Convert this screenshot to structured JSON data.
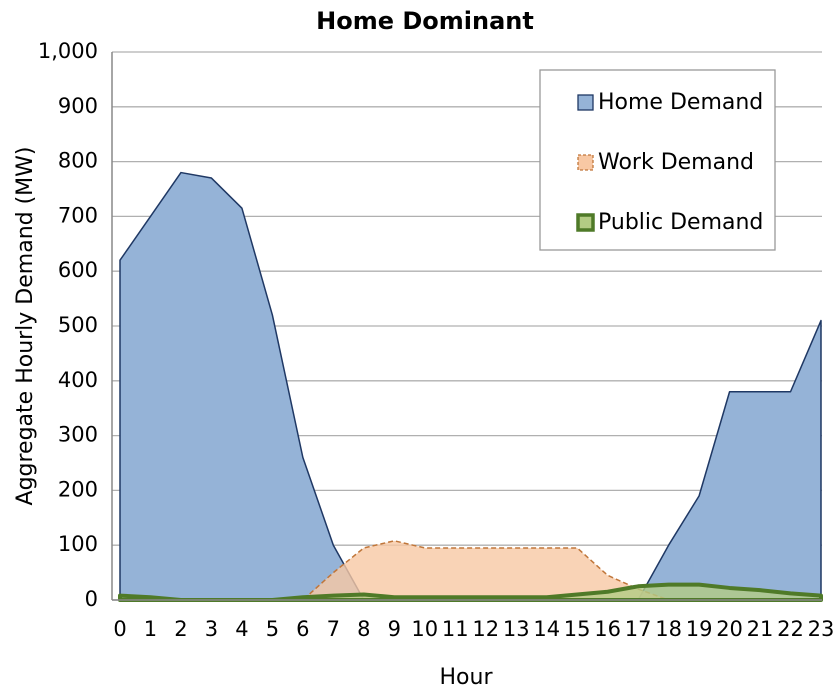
{
  "chart_data": {
    "type": "area",
    "title": "Home Dominant",
    "x_label": "Hour",
    "y_label": "Aggregate Hourly Demand (MW)",
    "categories": [
      "0",
      "1",
      "2",
      "3",
      "4",
      "5",
      "6",
      "7",
      "8",
      "9",
      "10",
      "11",
      "12",
      "13",
      "14",
      "15",
      "16",
      "17",
      "18",
      "19",
      "20",
      "21",
      "22",
      "23"
    ],
    "series": [
      {
        "name": "Home Demand",
        "color": "#95b3d7",
        "line_color": "#1f3864",
        "values": [
          620,
          700,
          780,
          770,
          715,
          520,
          260,
          100,
          0,
          0,
          0,
          0,
          0,
          0,
          0,
          0,
          0,
          0,
          100,
          190,
          380,
          380,
          380,
          510
        ]
      },
      {
        "name": "Work Demand",
        "color": "#f8c8a4",
        "line_color": "#c0763a",
        "values": [
          0,
          0,
          0,
          0,
          0,
          0,
          0,
          50,
          95,
          108,
          95,
          95,
          95,
          95,
          95,
          95,
          45,
          20,
          0,
          0,
          0,
          0,
          0,
          0
        ]
      },
      {
        "name": "Public Demand",
        "color": "#b3cc84",
        "line_color": "#4f7a28",
        "values": [
          8,
          5,
          0,
          0,
          0,
          0,
          5,
          8,
          10,
          5,
          5,
          5,
          5,
          5,
          5,
          10,
          15,
          25,
          28,
          28,
          22,
          18,
          12,
          8
        ]
      }
    ],
    "ylim": [
      0,
      1000
    ],
    "yticks": [
      0,
      100,
      200,
      300,
      400,
      500,
      600,
      700,
      800,
      900,
      {
        "value": 1000,
        "label": "1,000"
      }
    ],
    "grid": true,
    "legend": "upper right"
  }
}
